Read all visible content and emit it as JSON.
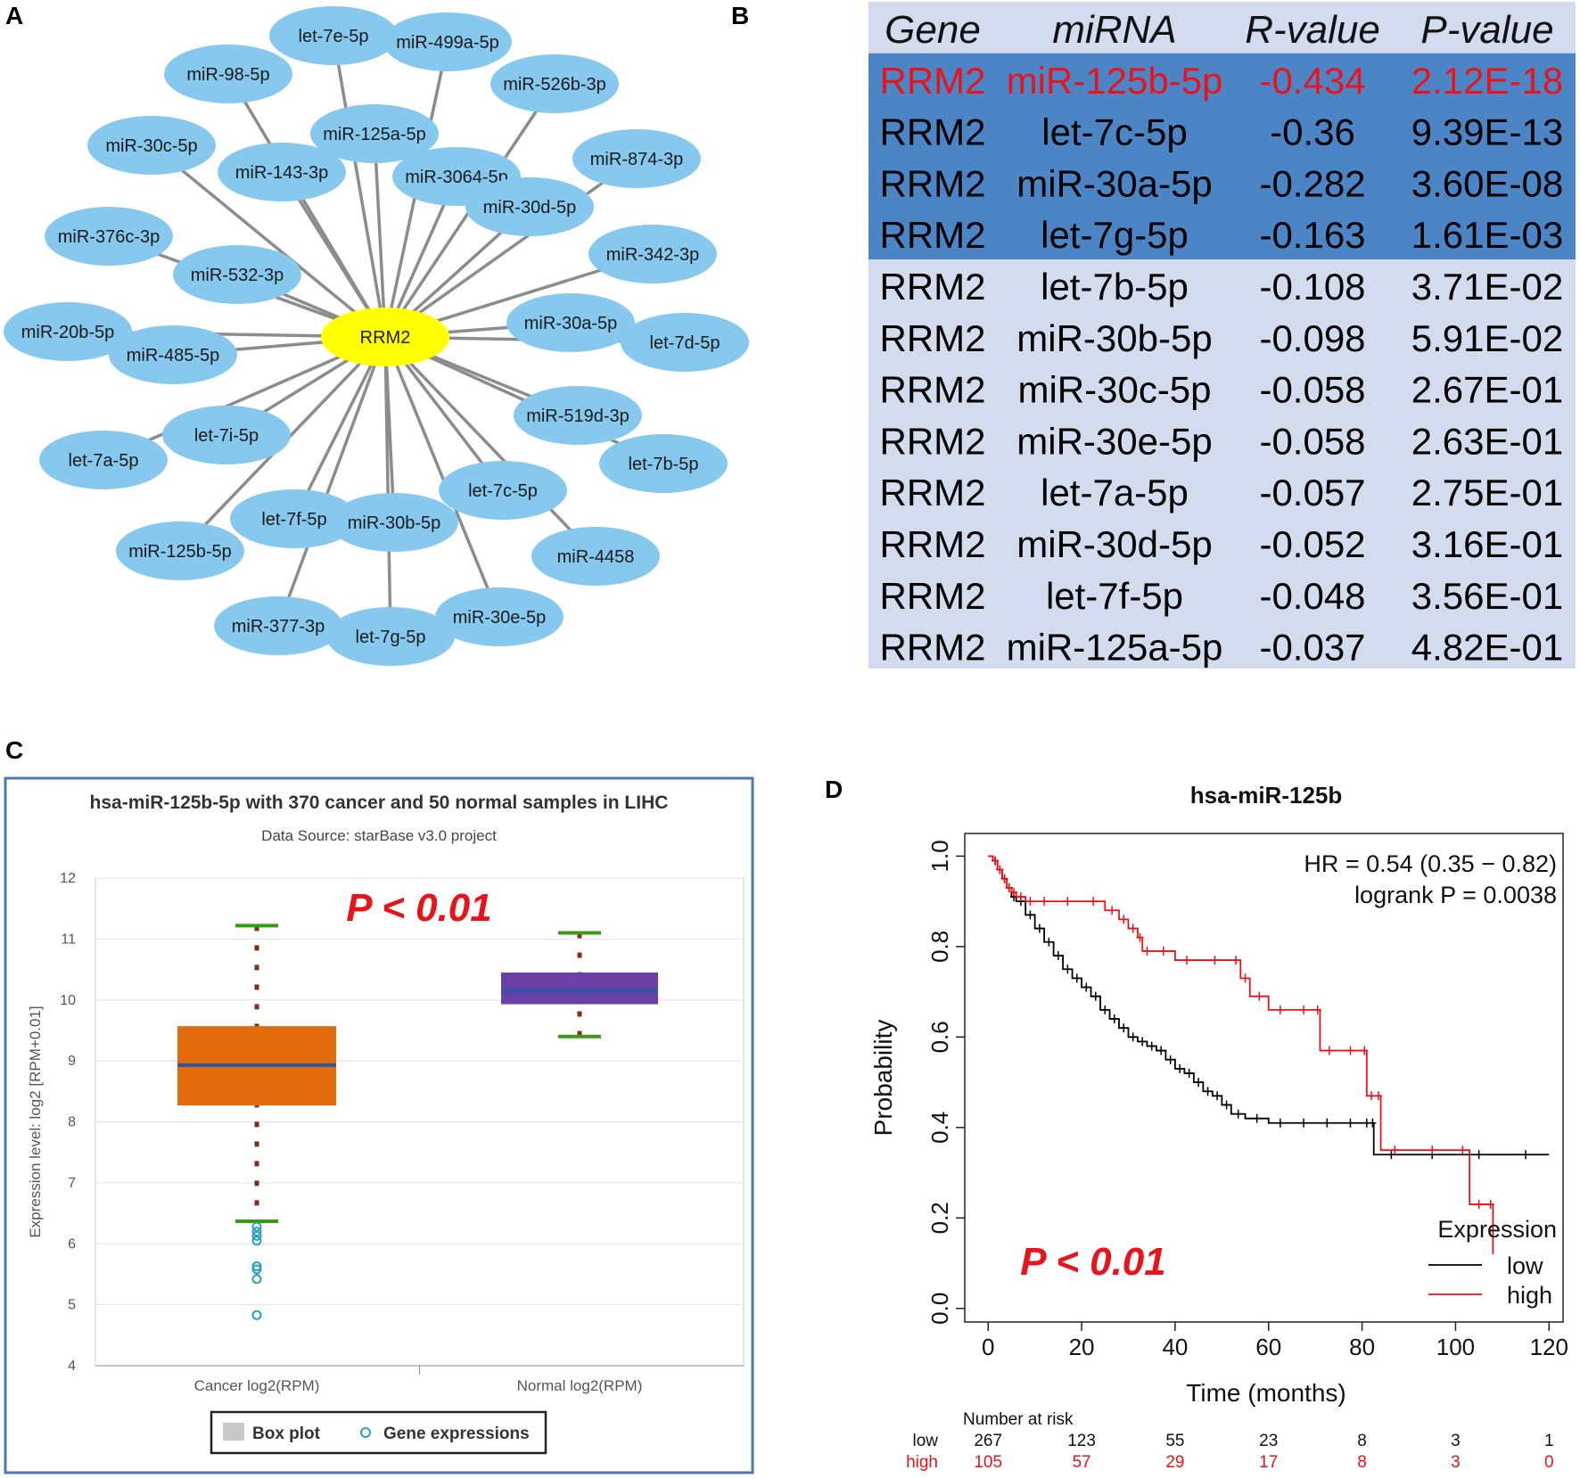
{
  "panel_letters": {
    "a": "A",
    "b": "B",
    "c": "C",
    "d": "D"
  },
  "network": {
    "center": "RRM2",
    "nodes": [
      "let-7e-5p",
      "miR-499a-5p",
      "miR-98-5p",
      "miR-526b-3p",
      "miR-125a-5p",
      "miR-30c-5p",
      "miR-143-3p",
      "miR-3064-5p",
      "miR-874-3p",
      "miR-30d-5p",
      "miR-376c-3p",
      "miR-342-3p",
      "miR-532-3p",
      "miR-30a-5p",
      "miR-20b-5p",
      "let-7d-5p",
      "miR-485-5p",
      "miR-519d-3p",
      "let-7i-5p",
      "let-7b-5p",
      "let-7a-5p",
      "let-7c-5p",
      "let-7f-5p",
      "miR-30b-5p",
      "miR-125b-5p",
      "miR-4458",
      "miR-377-3p",
      "miR-30e-5p",
      "let-7g-5p"
    ]
  },
  "table": {
    "headers": [
      "Gene",
      "miRNA",
      "R-value",
      "P-value"
    ],
    "rows": [
      [
        "RRM2",
        "miR-125b-5p",
        "-0.434",
        "2.12E-18"
      ],
      [
        "RRM2",
        "let-7c-5p",
        "-0.36",
        "9.39E-13"
      ],
      [
        "RRM2",
        "miR-30a-5p",
        "-0.282",
        "3.60E-08"
      ],
      [
        "RRM2",
        "let-7g-5p",
        "-0.163",
        "1.61E-03"
      ],
      [
        "RRM2",
        "let-7b-5p",
        "-0.108",
        "3.71E-02"
      ],
      [
        "RRM2",
        "miR-30b-5p",
        "-0.098",
        "5.91E-02"
      ],
      [
        "RRM2",
        "miR-30c-5p",
        "-0.058",
        "2.67E-01"
      ],
      [
        "RRM2",
        "miR-30e-5p",
        "-0.058",
        "2.63E-01"
      ],
      [
        "RRM2",
        "let-7a-5p",
        "-0.057",
        "2.75E-01"
      ],
      [
        "RRM2",
        "miR-30d-5p",
        "-0.052",
        "3.16E-01"
      ],
      [
        "RRM2",
        "let-7f-5p",
        "-0.048",
        "3.56E-01"
      ],
      [
        "RRM2",
        "miR-125a-5p",
        "-0.037",
        "4.82E-01"
      ]
    ]
  },
  "colors": {
    "node": "#87c9ee",
    "center": "#ffff00",
    "edge": "#8c8c8c",
    "table_bg": "#d3dcee",
    "table_highlight": "#4b85c5",
    "red": "#e8131b",
    "cancer_box": "#e36a0c",
    "normal_box": "#6a3fa6",
    "median": "#2a58a8",
    "whisker_cap": "#3a9a18",
    "whisker": "#8b2a1a",
    "outlier": "#2aa0c0",
    "frame": "#4a79b5",
    "km_low": "#000000",
    "km_high": "#e8131b"
  },
  "chart_data": [
    {
      "type": "box",
      "title": "hsa-miR-125b-5p with 370 cancer and 50 normal samples in LIHC",
      "subtitle": "Data Source: starBase v3.0 project",
      "ylabel": "Expression level: log2 [RPM+0.01]",
      "ylim": [
        4,
        12
      ],
      "yticks": [
        "4",
        "5",
        "6",
        "7",
        "8",
        "9",
        "10",
        "11",
        "12"
      ],
      "annotation": "P < 0.01",
      "categories": [
        "Cancer log2(RPM)",
        "Normal log2(RPM)"
      ],
      "boxes": [
        {
          "name": "Cancer log2(RPM)",
          "whisker_low": 6.37,
          "q1": 8.27,
          "median": 8.93,
          "q3": 9.57,
          "whisker_high": 11.22,
          "outliers": [
            6.28,
            6.2,
            6.13,
            6.05,
            5.63,
            5.58,
            5.42,
            4.83
          ]
        },
        {
          "name": "Normal log2(RPM)",
          "whisker_low": 9.4,
          "q1": 9.93,
          "median": 10.15,
          "q3": 10.45,
          "whisker_high": 11.1,
          "outliers": []
        }
      ],
      "legend": [
        "Box plot",
        "Gene expressions"
      ]
    },
    {
      "type": "line",
      "title": "hsa-miR-125b",
      "xlabel": "Time (months)",
      "ylabel": "Probability",
      "xlim": [
        -5,
        123
      ],
      "ylim": [
        -0.03,
        1.05
      ],
      "xticks": [
        "0",
        "20",
        "40",
        "60",
        "80",
        "100",
        "120"
      ],
      "yticks": [
        "0.0",
        "0.2",
        "0.4",
        "0.6",
        "0.8",
        "1.0"
      ],
      "annotation": "P < 0.01",
      "stats": [
        "HR = 0.54 (0.35 − 0.82)",
        "logrank P = 0.0038"
      ],
      "legend_title": "Expression",
      "series": [
        {
          "name": "low",
          "x": [
            0,
            1,
            2,
            3,
            4,
            5,
            6,
            8,
            10,
            12,
            14,
            16,
            18,
            20,
            22,
            24,
            26,
            28,
            30,
            32,
            34,
            36,
            38,
            40,
            42,
            44,
            46,
            48,
            50,
            52,
            55,
            60,
            65,
            70,
            75,
            80,
            82,
            82.5,
            90,
            100,
            110,
            120
          ],
          "y": [
            1,
            0.99,
            0.97,
            0.95,
            0.93,
            0.91,
            0.9,
            0.87,
            0.84,
            0.81,
            0.78,
            0.75,
            0.73,
            0.71,
            0.69,
            0.66,
            0.64,
            0.62,
            0.6,
            0.59,
            0.58,
            0.57,
            0.55,
            0.53,
            0.52,
            0.5,
            0.48,
            0.47,
            0.45,
            0.43,
            0.42,
            0.41,
            0.41,
            0.41,
            0.41,
            0.41,
            0.41,
            0.34,
            0.34,
            0.34,
            0.34,
            0.34
          ]
        },
        {
          "name": "high",
          "x": [
            0,
            1,
            2,
            3,
            4,
            5,
            6,
            8,
            10,
            14,
            20,
            25,
            28,
            30,
            32,
            33,
            35,
            40,
            45,
            52,
            54,
            56,
            60,
            65,
            70,
            71,
            75,
            80,
            81,
            83,
            84,
            90,
            100,
            103,
            107,
            108
          ],
          "y": [
            1,
            0.99,
            0.97,
            0.95,
            0.93,
            0.92,
            0.91,
            0.9,
            0.9,
            0.9,
            0.9,
            0.88,
            0.86,
            0.84,
            0.82,
            0.79,
            0.79,
            0.77,
            0.77,
            0.77,
            0.73,
            0.69,
            0.66,
            0.66,
            0.66,
            0.57,
            0.57,
            0.57,
            0.47,
            0.47,
            0.35,
            0.35,
            0.35,
            0.23,
            0.23,
            0.12
          ]
        }
      ],
      "number_at_risk": {
        "label": "Number at risk",
        "low": {
          "label": "low",
          "values": [
            "267",
            "123",
            "55",
            "23",
            "8",
            "3",
            "1"
          ]
        },
        "high": {
          "label": "high",
          "values": [
            "105",
            "57",
            "29",
            "17",
            "8",
            "3",
            "0"
          ]
        }
      }
    }
  ]
}
